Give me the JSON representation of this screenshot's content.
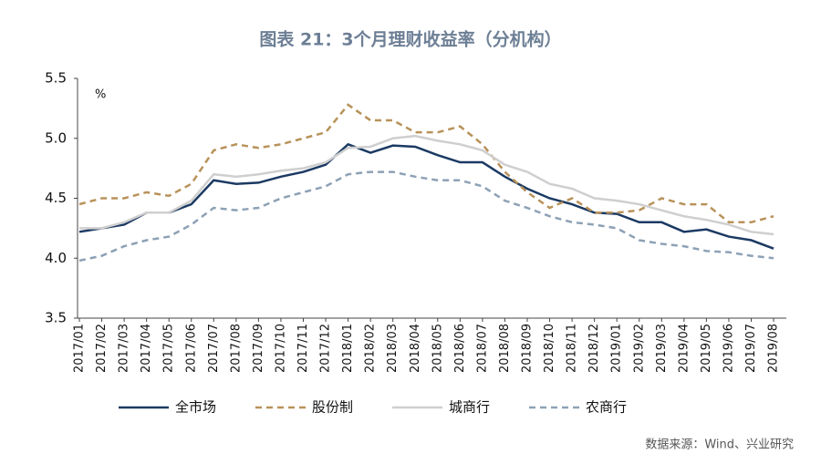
{
  "chart_data": {
    "type": "line",
    "title": "图表 21：3个月理财收益率（分机构）",
    "y_label": "%",
    "source": "数据来源：Wind、兴业研究",
    "categories": [
      "2017/01",
      "2017/02",
      "2017/03",
      "2017/04",
      "2017/05",
      "2017/06",
      "2017/07",
      "2017/08",
      "2017/09",
      "2017/10",
      "2017/11",
      "2017/12",
      "2018/01",
      "2018/02",
      "2018/03",
      "2018/04",
      "2018/05",
      "2018/06",
      "2018/07",
      "2018/08",
      "2018/09",
      "2018/10",
      "2018/11",
      "2018/12",
      "2019/01",
      "2019/02",
      "2019/03",
      "2019/04",
      "2019/05",
      "2019/06",
      "2019/07",
      "2019/08"
    ],
    "series": [
      {
        "name": "全市场",
        "color": "#1b3a63",
        "dash": "solid",
        "values": [
          4.22,
          4.25,
          4.28,
          4.38,
          4.38,
          4.45,
          4.65,
          4.62,
          4.63,
          4.68,
          4.72,
          4.78,
          4.95,
          4.88,
          4.94,
          4.93,
          4.86,
          4.8,
          4.8,
          4.68,
          4.58,
          4.5,
          4.45,
          4.38,
          4.37,
          4.3,
          4.3,
          4.22,
          4.24,
          4.18,
          4.15,
          4.08
        ]
      },
      {
        "name": "股份制",
        "color": "#b8925a",
        "dash": "dashed",
        "values": [
          4.45,
          4.5,
          4.5,
          4.55,
          4.52,
          4.62,
          4.9,
          4.95,
          4.92,
          4.95,
          5.0,
          5.05,
          5.28,
          5.15,
          5.15,
          5.05,
          5.05,
          5.1,
          4.95,
          4.72,
          4.55,
          4.42,
          4.5,
          4.38,
          4.38,
          4.4,
          4.5,
          4.45,
          4.45,
          4.3,
          4.3,
          4.35
        ]
      },
      {
        "name": "城商行",
        "color": "#cfcfcf",
        "dash": "solid",
        "values": [
          4.25,
          4.25,
          4.3,
          4.38,
          4.38,
          4.48,
          4.7,
          4.68,
          4.7,
          4.73,
          4.75,
          4.8,
          4.92,
          4.93,
          5.0,
          5.02,
          4.98,
          4.95,
          4.9,
          4.78,
          4.72,
          4.62,
          4.58,
          4.5,
          4.48,
          4.45,
          4.4,
          4.35,
          4.32,
          4.28,
          4.22,
          4.2
        ]
      },
      {
        "name": "农商行",
        "color": "#8da1b5",
        "dash": "dashed",
        "values": [
          3.98,
          4.02,
          4.1,
          4.15,
          4.18,
          4.28,
          4.42,
          4.4,
          4.42,
          4.5,
          4.55,
          4.6,
          4.7,
          4.72,
          4.72,
          4.68,
          4.65,
          4.65,
          4.6,
          4.48,
          4.42,
          4.35,
          4.3,
          4.28,
          4.25,
          4.15,
          4.12,
          4.1,
          4.06,
          4.05,
          4.02,
          4.0
        ]
      }
    ],
    "ylim": [
      3.5,
      5.5
    ],
    "yticks": [
      3.5,
      {
        "value": 4,
        "label": "4.0"
      },
      4.5,
      {
        "value": 5,
        "label": "5.0"
      },
      5.5
    ]
  }
}
